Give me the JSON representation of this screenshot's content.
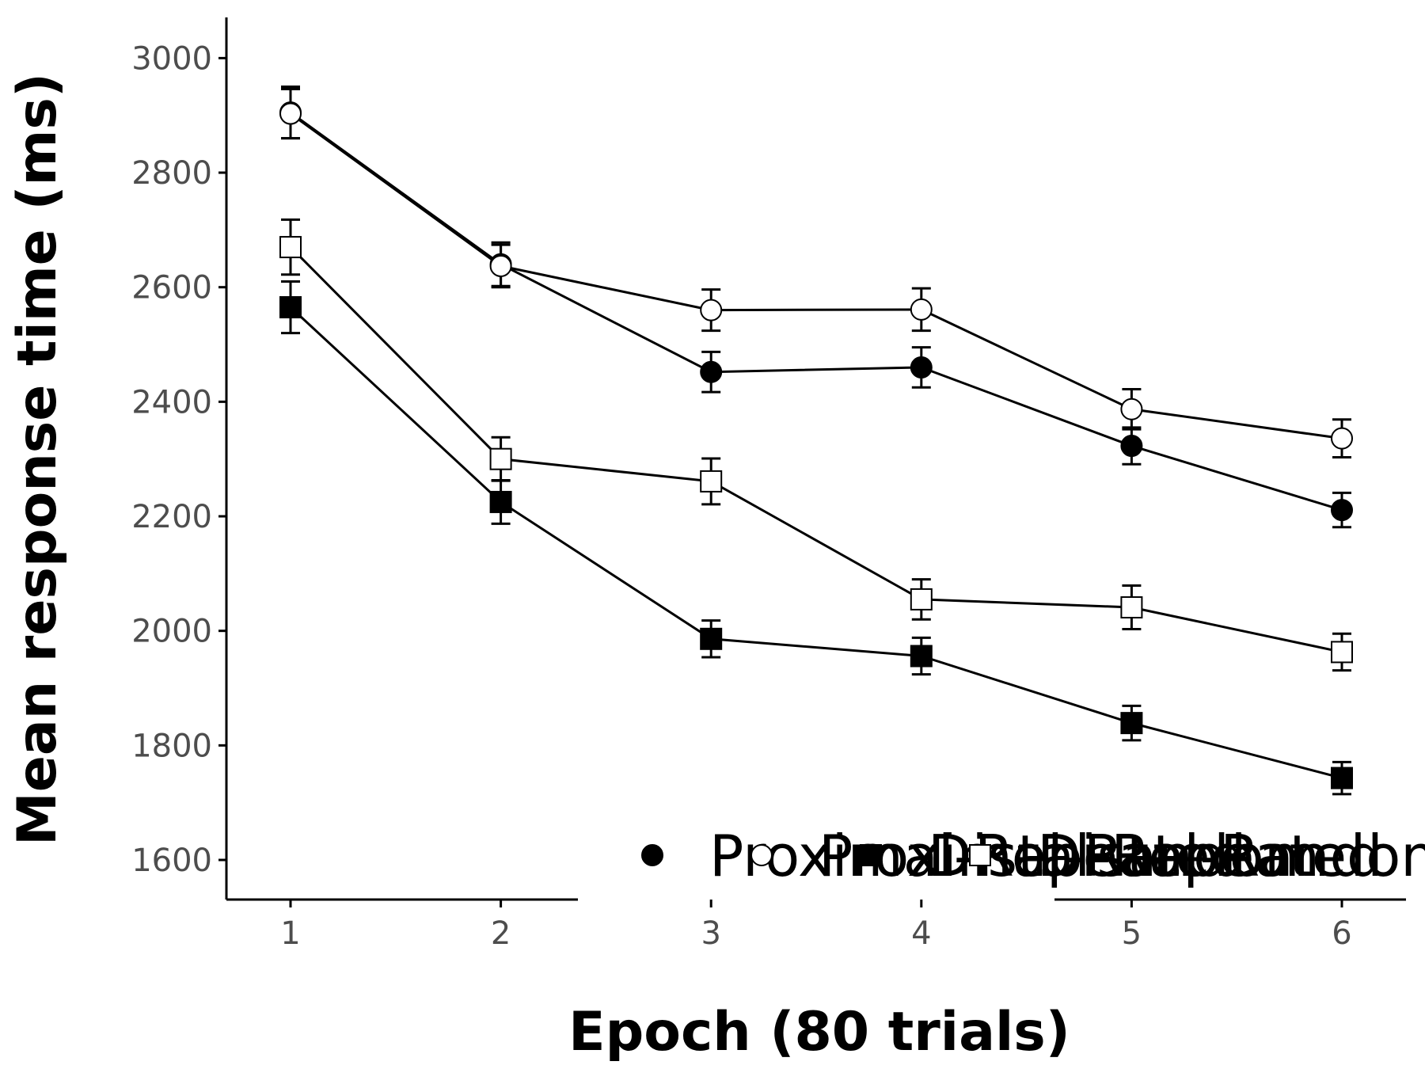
{
  "chart_data": {
    "type": "line",
    "xlabel": "Epoch (80 trials)",
    "ylabel": "Mean response time (ms)",
    "x": [
      1,
      2,
      3,
      4,
      5,
      6
    ],
    "x_ticks": [
      "1",
      "2",
      "3",
      "4",
      "5",
      "6"
    ],
    "y_ticks": [
      "1600",
      "1800",
      "2000",
      "2200",
      "2400",
      "2600",
      "2800",
      "3000"
    ],
    "xlim": [
      0.7,
      6.3
    ],
    "ylim": [
      1530,
      3070
    ],
    "grid": false,
    "legend_position": "bottom-right",
    "series": [
      {
        "name": "Proximal-Repeated",
        "marker": "circle-filled",
        "values": [
          2905,
          2640,
          2452,
          2460,
          2323,
          2211
        ],
        "errors": [
          45,
          38,
          35,
          35,
          32,
          30
        ]
      },
      {
        "name": "Proximal-Random",
        "marker": "circle-open",
        "values": [
          2903,
          2637,
          2560,
          2561,
          2387,
          2336
        ],
        "errors": [
          43,
          37,
          36,
          37,
          35,
          33
        ]
      },
      {
        "name": "Distal-Repeated",
        "marker": "square-filled",
        "values": [
          2565,
          2225,
          1986,
          1956,
          1839,
          1743
        ],
        "errors": [
          45,
          38,
          32,
          32,
          30,
          28
        ]
      },
      {
        "name": "Distal-Random",
        "marker": "square-open",
        "values": [
          2670,
          2300,
          2261,
          2055,
          2041,
          1963
        ],
        "errors": [
          48,
          38,
          40,
          35,
          38,
          32
        ]
      }
    ]
  }
}
